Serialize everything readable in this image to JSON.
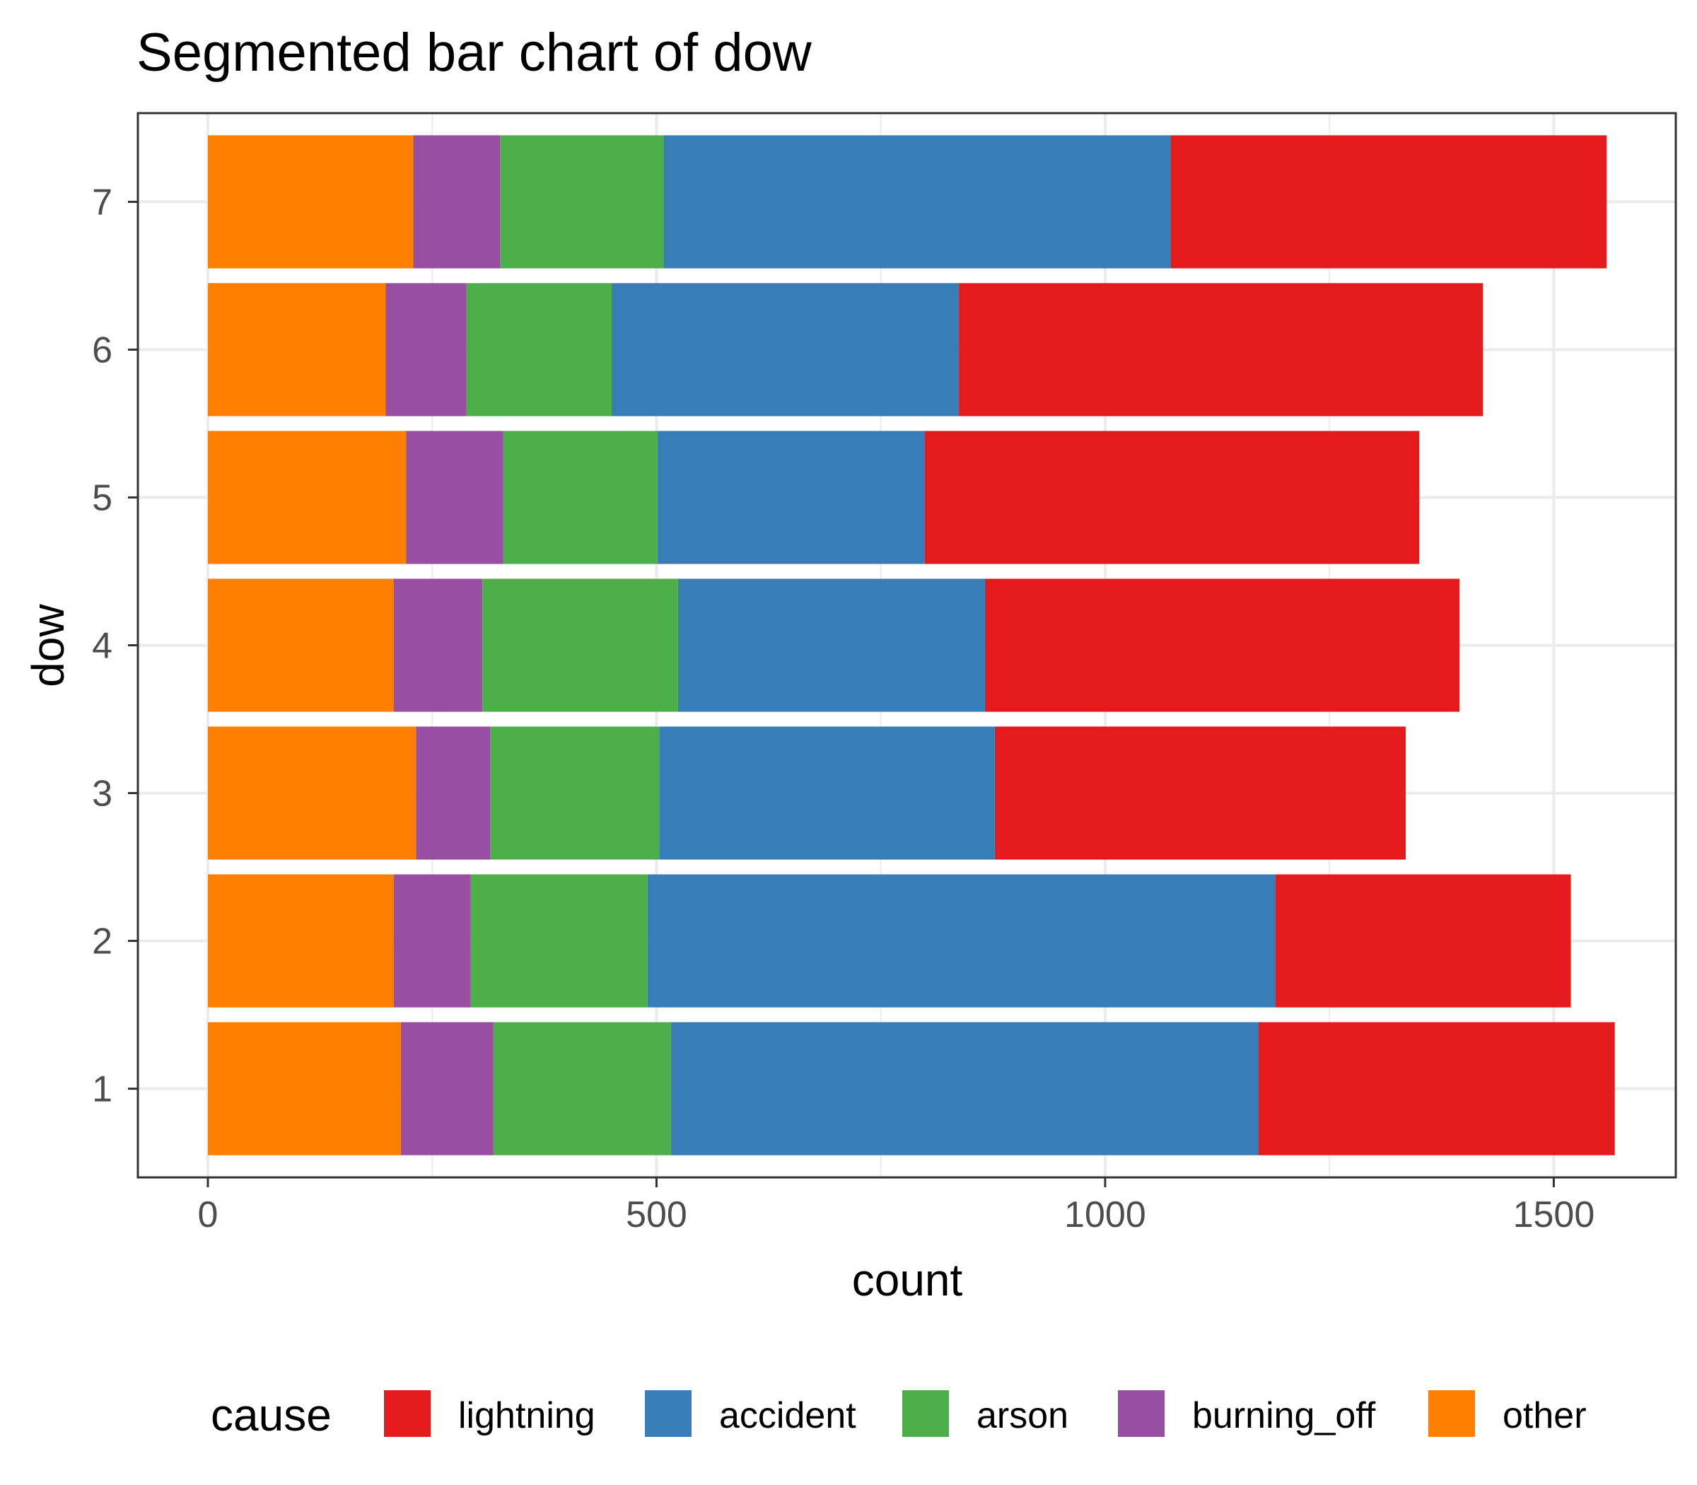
{
  "chart_data": {
    "type": "bar",
    "orientation": "horizontal",
    "stacked": true,
    "title": "Segmented bar chart of dow",
    "xlabel": "count",
    "ylabel": "dow",
    "categories": [
      "1",
      "2",
      "3",
      "4",
      "5",
      "6",
      "7"
    ],
    "x_ticks": [
      "0",
      "500",
      "1000",
      "1500"
    ],
    "xlim": [
      -78,
      1636
    ],
    "grid": true,
    "legend": {
      "title": "cause",
      "position": "bottom",
      "entries": [
        "lightning",
        "accident",
        "arson",
        "burning_off",
        "other"
      ]
    },
    "stack_order_from_zero": [
      "other",
      "burning_off",
      "arson",
      "accident",
      "lightning"
    ],
    "series": [
      {
        "name": "other",
        "color": "#FF7F00",
        "values": [
          215,
          207,
          232,
          207,
          221,
          198,
          229
        ]
      },
      {
        "name": "burning_off",
        "color": "#984EA3",
        "values": [
          103,
          86,
          83,
          99,
          108,
          90,
          97
        ]
      },
      {
        "name": "arson",
        "color": "#4DAF4A",
        "values": [
          198,
          197,
          188,
          218,
          172,
          162,
          182
        ]
      },
      {
        "name": "accident",
        "color": "#377EB8",
        "values": [
          655,
          700,
          374,
          342,
          298,
          387,
          565
        ]
      },
      {
        "name": "lightning",
        "color": "#E41A1C",
        "values": [
          397,
          329,
          458,
          529,
          551,
          584,
          486
        ]
      }
    ]
  }
}
